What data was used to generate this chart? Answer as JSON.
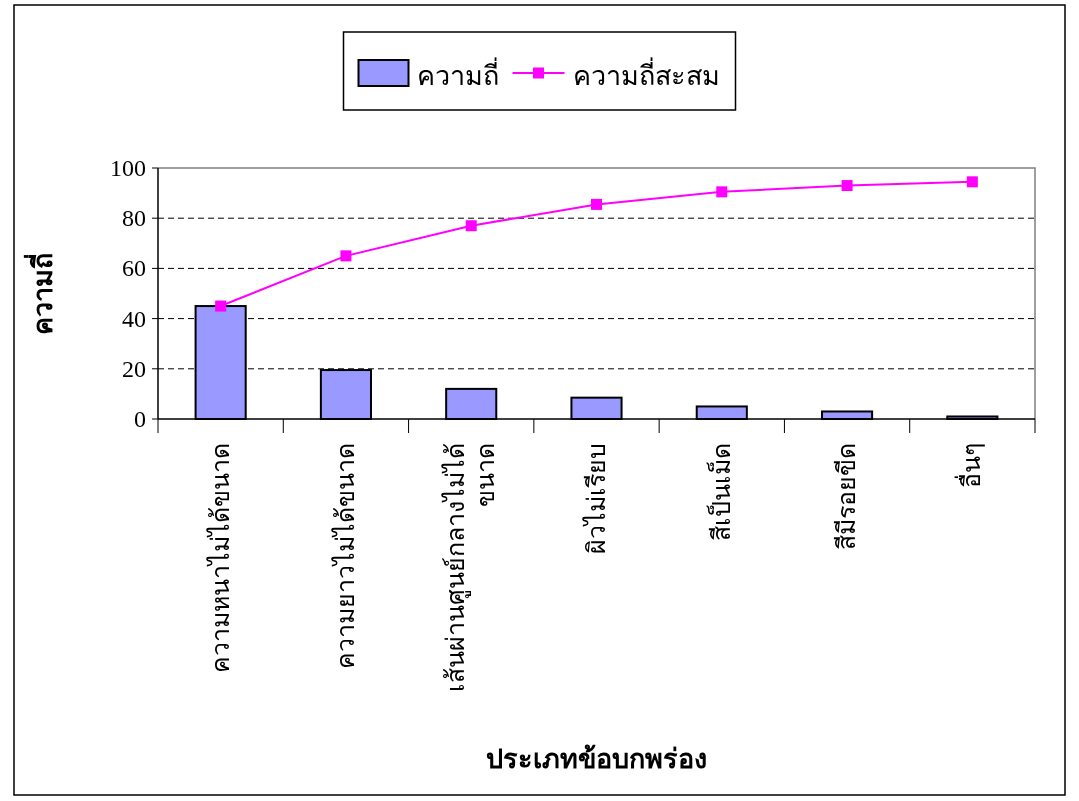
{
  "chart_data": {
    "type": "bar",
    "xlabel": "ประเภทข้อบกพร่อง",
    "ylabel": "ความถี่",
    "categories": [
      "ความหนาไม่ได้ขนาด",
      "ความยาวไม่ได้ขนาด",
      "เส้นผ่านศูนย์กลางไม่ได้\nขนาด",
      "ผิวไม่เรียบ",
      "สีเป็นเม็ด",
      "สีมีรอยขีด",
      "อื่นๆ"
    ],
    "series": [
      {
        "name": "ความถี่",
        "color": "#9999ff",
        "values": [
          45,
          19.5,
          12,
          8.5,
          5,
          3,
          1
        ]
      },
      {
        "name": "ความถี่สะสม",
        "type": "line",
        "color": "#ff00ff",
        "marker": "square",
        "values": [
          45,
          65,
          77,
          85.5,
          90.5,
          93,
          94.5
        ]
      }
    ],
    "ylim": [
      0,
      100
    ],
    "yticks": [
      0,
      20,
      40,
      60,
      80,
      100
    ],
    "grid": "y",
    "legend": "top"
  }
}
